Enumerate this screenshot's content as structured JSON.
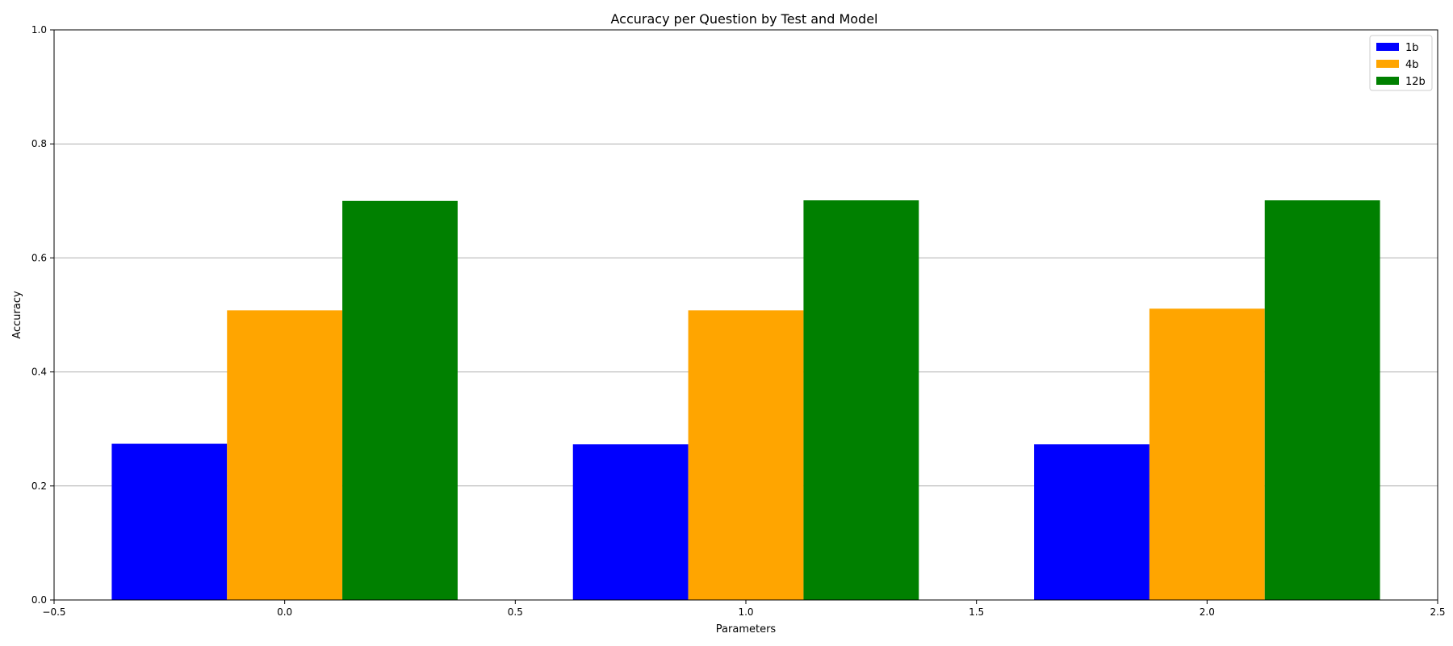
{
  "chart_data": {
    "type": "bar",
    "title": "Accuracy per Question by Test and Model",
    "xlabel": "Parameters",
    "ylabel": "Accuracy",
    "x_positions": [
      0,
      1,
      2
    ],
    "bar_width": 0.25,
    "xlim": [
      -0.5,
      2.5
    ],
    "ylim": [
      0,
      1
    ],
    "xticks": [
      -0.5,
      0.0,
      0.5,
      1.0,
      1.5,
      2.0,
      2.5
    ],
    "xtick_labels": [
      "−0.5",
      "0.0",
      "0.5",
      "1.0",
      "1.5",
      "2.0",
      "2.5"
    ],
    "yticks": [
      0.0,
      0.2,
      0.4,
      0.6,
      0.8,
      1.0
    ],
    "ytick_labels": [
      "0.0",
      "0.2",
      "0.4",
      "0.6",
      "0.8",
      "1.0"
    ],
    "grid": "y",
    "legend_position": "top-right",
    "series": [
      {
        "name": "1b",
        "color": "#0000ff",
        "values": [
          0.274,
          0.273,
          0.273
        ]
      },
      {
        "name": "4b",
        "color": "#ffa500",
        "values": [
          0.508,
          0.508,
          0.511
        ]
      },
      {
        "name": "12b",
        "color": "#008000",
        "values": [
          0.7,
          0.701,
          0.701
        ]
      }
    ]
  }
}
